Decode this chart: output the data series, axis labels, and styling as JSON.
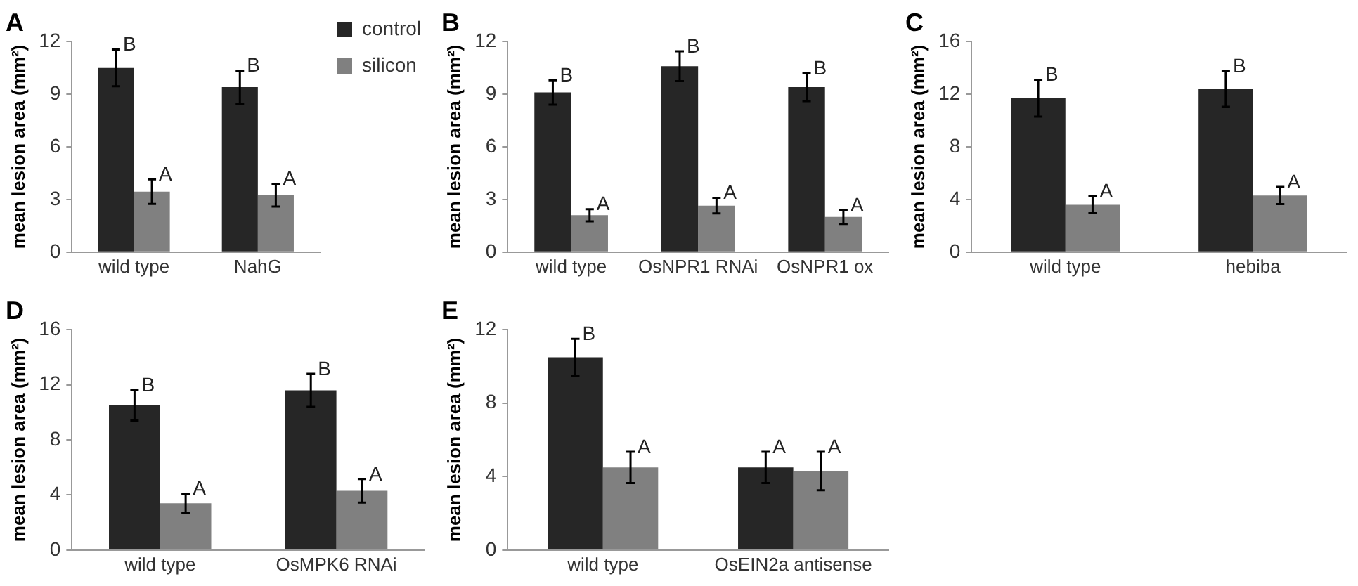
{
  "chart_data": [
    {
      "type": "bar",
      "title": "A",
      "ylabel": "mean lesion area (mm²)",
      "categories": [
        "wild type",
        "NahG"
      ],
      "ylim": [
        0,
        12
      ],
      "yticks": [
        0,
        3,
        6,
        9,
        12
      ],
      "grid": false,
      "legend": "top right",
      "series": [
        {
          "name": "control",
          "color": "#262626",
          "values": [
            10.5,
            9.4
          ],
          "errors": [
            1.05,
            0.95
          ],
          "value_labels": [
            "B",
            "B"
          ]
        },
        {
          "name": "silicon",
          "color": "#808080",
          "values": [
            3.45,
            3.25
          ],
          "errors": [
            0.7,
            0.65
          ],
          "value_labels": [
            "A",
            "A"
          ]
        }
      ]
    },
    {
      "type": "bar",
      "title": "B",
      "ylabel": "mean lesion area (mm²)",
      "categories": [
        "wild type",
        "OsNPR1 RNAi",
        "OsNPR1 ox"
      ],
      "ylim": [
        0,
        12
      ],
      "yticks": [
        0,
        3,
        6,
        9,
        12
      ],
      "grid": false,
      "series": [
        {
          "color": "#262626",
          "values": [
            9.1,
            10.6,
            9.4
          ],
          "errors": [
            0.7,
            0.85,
            0.8
          ],
          "value_labels": [
            "B",
            "B",
            "B"
          ]
        },
        {
          "color": "#808080",
          "values": [
            2.1,
            2.65,
            2.0
          ],
          "errors": [
            0.35,
            0.45,
            0.4
          ],
          "value_labels": [
            "A",
            "A",
            "A"
          ]
        }
      ]
    },
    {
      "type": "bar",
      "title": "C",
      "ylabel": "mean lesion area (mm²)",
      "categories": [
        "wild type",
        "hebiba"
      ],
      "ylim": [
        0,
        16
      ],
      "yticks": [
        0,
        4,
        8,
        12,
        16
      ],
      "grid": false,
      "series": [
        {
          "color": "#262626",
          "values": [
            11.7,
            12.4
          ],
          "errors": [
            1.4,
            1.35
          ],
          "value_labels": [
            "B",
            "B"
          ]
        },
        {
          "color": "#808080",
          "values": [
            3.6,
            4.3
          ],
          "errors": [
            0.65,
            0.65
          ],
          "value_labels": [
            "A",
            "A"
          ]
        }
      ]
    },
    {
      "type": "bar",
      "title": "D",
      "ylabel": "mean lesion area (mm²)",
      "categories": [
        "wild type",
        "OsMPK6 RNAi"
      ],
      "ylim": [
        0,
        16
      ],
      "yticks": [
        0,
        4,
        8,
        12,
        16
      ],
      "grid": false,
      "series": [
        {
          "color": "#262626",
          "values": [
            10.5,
            11.6
          ],
          "errors": [
            1.1,
            1.2
          ],
          "value_labels": [
            "B",
            "B"
          ]
        },
        {
          "color": "#808080",
          "values": [
            3.4,
            4.3
          ],
          "errors": [
            0.7,
            0.85
          ],
          "value_labels": [
            "A",
            "A"
          ]
        }
      ]
    },
    {
      "type": "bar",
      "title": "E",
      "ylabel": "mean lesion area (mm²)",
      "categories": [
        "wild type",
        "OsEIN2a antisense"
      ],
      "ylim": [
        0,
        12
      ],
      "yticks": [
        0,
        4,
        8,
        12
      ],
      "grid": false,
      "series": [
        {
          "color": "#262626",
          "values": [
            10.5,
            4.5
          ],
          "errors": [
            1.0,
            0.85
          ],
          "value_labels": [
            "B",
            "A"
          ]
        },
        {
          "color": "#808080",
          "values": [
            4.5,
            4.3
          ],
          "errors": [
            0.85,
            1.05
          ],
          "value_labels": [
            "A",
            "A"
          ]
        }
      ]
    }
  ]
}
